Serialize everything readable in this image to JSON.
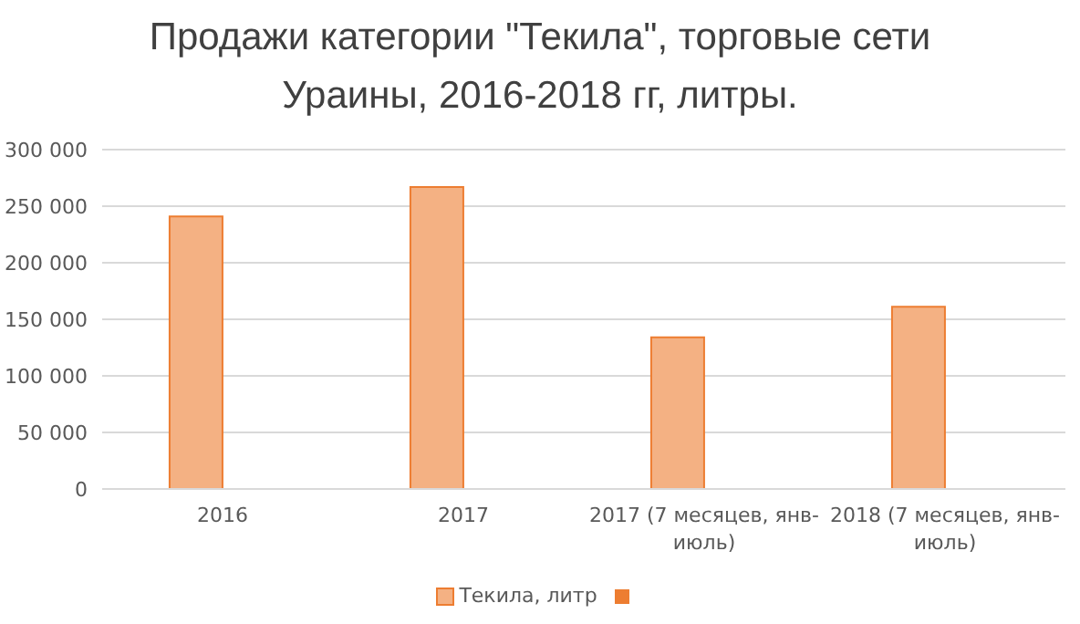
{
  "chart_data": {
    "type": "bar",
    "title": "Продажи категории \"Текила\", торговые сети Ураины, 2016-2018 гг, литры.",
    "categories": [
      "2016",
      "2017",
      "2017  (7 месяцев, янв-июль)",
      "2018  (7 месяцев, янв-июль)"
    ],
    "series": [
      {
        "name": "Текила, литр",
        "color": "#f4b183",
        "values": [
          241000,
          267000,
          134000,
          161000
        ]
      },
      {
        "color": "#ed7d31",
        "values": [
          null,
          null,
          null,
          null
        ]
      }
    ],
    "ylim": [
      0,
      300000
    ],
    "yticks": [
      {
        "value": 0,
        "label": "0"
      },
      {
        "value": 50000,
        "label": "50 000"
      },
      {
        "value": 100000,
        "label": "100 000"
      },
      {
        "value": 150000,
        "label": "150 000"
      },
      {
        "value": 200000,
        "label": "200 000"
      },
      {
        "value": 250000,
        "label": "250 000"
      },
      {
        "value": 300000,
        "label": "300 000"
      }
    ],
    "grid": "y",
    "legend": "bottom"
  }
}
